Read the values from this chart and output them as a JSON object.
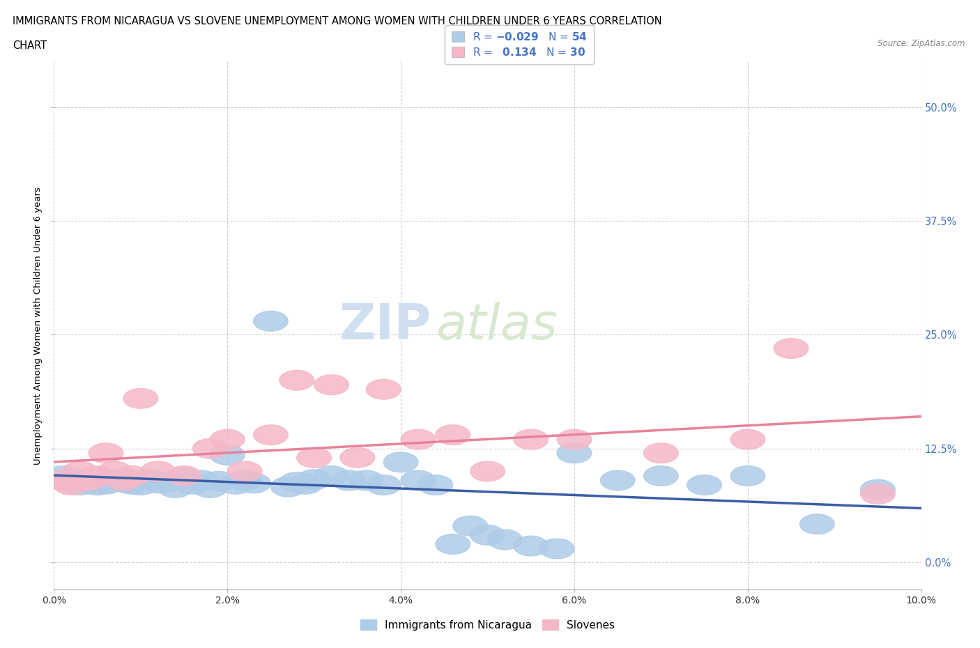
{
  "title_line1": "IMMIGRANTS FROM NICARAGUA VS SLOVENE UNEMPLOYMENT AMONG WOMEN WITH CHILDREN UNDER 6 YEARS CORRELATION",
  "title_line2": "CHART",
  "source": "Source: ZipAtlas.com",
  "ylabel": "Unemployment Among Women with Children Under 6 years",
  "xlabel_ticks": [
    "0.0%",
    "2.0%",
    "4.0%",
    "6.0%",
    "8.0%",
    "10.0%"
  ],
  "ylabel_ticks": [
    "0.0%",
    "12.5%",
    "25.0%",
    "37.5%",
    "50.0%"
  ],
  "xlim": [
    0.0,
    0.1
  ],
  "ylim": [
    -0.03,
    0.55
  ],
  "nicaragua_R": -0.029,
  "nicaragua_N": 54,
  "slovene_R": 0.134,
  "slovene_N": 30,
  "nicaragua_color": "#aecce8",
  "slovene_color": "#f5b8c8",
  "nicaragua_line_color": "#3b5ea6",
  "slovene_line_color": "#e8839a",
  "background_color": "#ffffff",
  "grid_color": "#cccccc",
  "watermark_zip": "ZIP",
  "watermark_atlas": "atlas",
  "legend_color": "#4472c4",
  "nicaragua_scatter_x": [
    0.001,
    0.002,
    0.002,
    0.003,
    0.003,
    0.004,
    0.004,
    0.005,
    0.005,
    0.006,
    0.006,
    0.007,
    0.008,
    0.008,
    0.009,
    0.01,
    0.011,
    0.012,
    0.013,
    0.014,
    0.015,
    0.016,
    0.017,
    0.018,
    0.019,
    0.02,
    0.021,
    0.022,
    0.023,
    0.025,
    0.027,
    0.028,
    0.029,
    0.03,
    0.032,
    0.034,
    0.036,
    0.038,
    0.04,
    0.042,
    0.044,
    0.046,
    0.048,
    0.05,
    0.052,
    0.055,
    0.058,
    0.06,
    0.065,
    0.07,
    0.075,
    0.08,
    0.088,
    0.095
  ],
  "nicaragua_scatter_y": [
    0.095,
    0.088,
    0.092,
    0.085,
    0.091,
    0.09,
    0.087,
    0.093,
    0.085,
    0.088,
    0.086,
    0.09,
    0.088,
    0.092,
    0.086,
    0.085,
    0.091,
    0.087,
    0.088,
    0.082,
    0.093,
    0.086,
    0.09,
    0.082,
    0.089,
    0.118,
    0.086,
    0.09,
    0.087,
    0.265,
    0.083,
    0.088,
    0.086,
    0.091,
    0.095,
    0.09,
    0.09,
    0.085,
    0.11,
    0.09,
    0.085,
    0.02,
    0.04,
    0.03,
    0.025,
    0.018,
    0.015,
    0.12,
    0.09,
    0.095,
    0.085,
    0.095,
    0.042,
    0.08
  ],
  "slovene_scatter_x": [
    0.001,
    0.002,
    0.003,
    0.004,
    0.005,
    0.006,
    0.007,
    0.008,
    0.009,
    0.01,
    0.012,
    0.015,
    0.018,
    0.02,
    0.022,
    0.025,
    0.028,
    0.03,
    0.032,
    0.035,
    0.038,
    0.042,
    0.046,
    0.05,
    0.055,
    0.06,
    0.07,
    0.08,
    0.085,
    0.095
  ],
  "slovene_scatter_y": [
    0.09,
    0.085,
    0.1,
    0.09,
    0.095,
    0.12,
    0.1,
    0.09,
    0.095,
    0.18,
    0.1,
    0.095,
    0.125,
    0.135,
    0.1,
    0.14,
    0.2,
    0.115,
    0.195,
    0.115,
    0.19,
    0.135,
    0.14,
    0.1,
    0.135,
    0.135,
    0.12,
    0.135,
    0.235,
    0.075
  ]
}
